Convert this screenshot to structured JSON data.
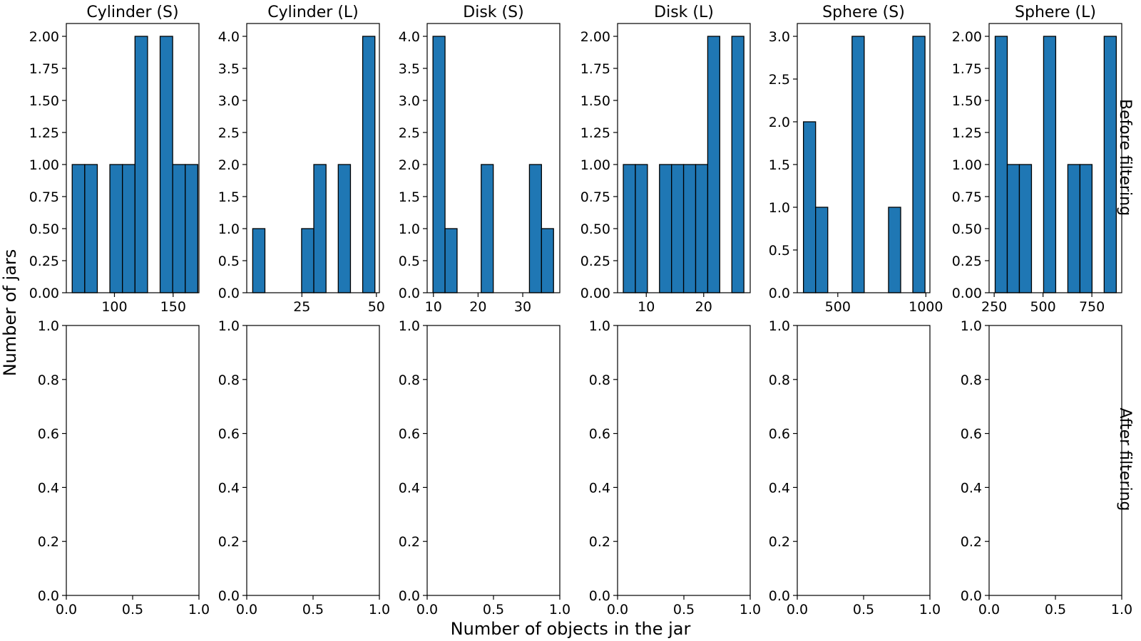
{
  "figure": {
    "xlabel": "Number of objects in the jar",
    "ylabel": "Number of jars",
    "row_labels": [
      "Before filtering",
      "After filtering"
    ],
    "bar_color": "#1f77b4",
    "bar_edge_color": "#000000"
  },
  "chart_data": [
    {
      "type": "bar",
      "title": "Cylinder (S)",
      "row": "Before filtering",
      "xlim": [
        59,
        172
      ],
      "ylim": [
        0,
        2.1
      ],
      "xticks": [
        100,
        150
      ],
      "xtick_labels": [
        "100",
        "150"
      ],
      "yticks": [
        0,
        0.25,
        0.5,
        0.75,
        1.0,
        1.25,
        1.5,
        1.75,
        2.0
      ],
      "ytick_labels": [
        "0.00",
        "0.25",
        "0.50",
        "0.75",
        "1.00",
        "1.25",
        "1.50",
        "1.75",
        "2.00"
      ],
      "bins": [
        [
          64.0,
          74.7,
          1
        ],
        [
          74.7,
          85.4,
          1
        ],
        [
          85.4,
          96.1,
          0
        ],
        [
          96.1,
          106.8,
          1
        ],
        [
          106.8,
          117.5,
          1
        ],
        [
          117.5,
          128.2,
          2
        ],
        [
          128.2,
          138.9,
          0
        ],
        [
          138.9,
          149.6,
          2
        ],
        [
          149.6,
          160.3,
          1
        ],
        [
          160.3,
          171.0,
          1
        ]
      ]
    },
    {
      "type": "bar",
      "title": "Cylinder (L)",
      "row": "Before filtering",
      "xlim": [
        6.5,
        51
      ],
      "ylim": [
        0,
        4.2
      ],
      "xticks": [
        25,
        50
      ],
      "xtick_labels": [
        "25",
        "50"
      ],
      "yticks": [
        0,
        0.5,
        1.0,
        1.5,
        2.0,
        2.5,
        3.0,
        3.5,
        4.0
      ],
      "ytick_labels": [
        "0.0",
        "0.5",
        "1.0",
        "1.5",
        "2.0",
        "2.5",
        "3.0",
        "3.5",
        "4.0"
      ],
      "bins": [
        [
          8.5,
          12.6,
          1
        ],
        [
          12.6,
          16.7,
          0
        ],
        [
          16.7,
          20.8,
          0
        ],
        [
          20.8,
          24.9,
          0
        ],
        [
          24.9,
          29.0,
          1
        ],
        [
          29.0,
          33.1,
          2
        ],
        [
          33.1,
          37.2,
          0
        ],
        [
          37.2,
          41.3,
          2
        ],
        [
          41.3,
          45.4,
          0
        ],
        [
          45.4,
          49.5,
          4
        ]
      ]
    },
    {
      "type": "bar",
      "title": "Disk (S)",
      "row": "Before filtering",
      "xlim": [
        8.6,
        38.3
      ],
      "ylim": [
        0,
        4.2
      ],
      "xticks": [
        10,
        20,
        30
      ],
      "xtick_labels": [
        "10",
        "20",
        "30"
      ],
      "yticks": [
        0,
        0.5,
        1.0,
        1.5,
        2.0,
        2.5,
        3.0,
        3.5,
        4.0
      ],
      "ytick_labels": [
        "0.0",
        "0.5",
        "1.0",
        "1.5",
        "2.0",
        "2.5",
        "3.0",
        "3.5",
        "4.0"
      ],
      "bins": [
        [
          9.9,
          12.6,
          4
        ],
        [
          12.6,
          15.3,
          1
        ],
        [
          15.3,
          18.0,
          0
        ],
        [
          18.0,
          20.7,
          0
        ],
        [
          20.7,
          23.4,
          2
        ],
        [
          23.4,
          26.1,
          0
        ],
        [
          26.1,
          28.8,
          0
        ],
        [
          28.8,
          31.5,
          0
        ],
        [
          31.5,
          34.2,
          2
        ],
        [
          34.2,
          36.9,
          1
        ]
      ]
    },
    {
      "type": "bar",
      "title": "Disk (L)",
      "row": "Before filtering",
      "xlim": [
        5,
        28.1
      ],
      "ylim": [
        0,
        2.1
      ],
      "xticks": [
        10,
        20
      ],
      "xtick_labels": [
        "10",
        "20"
      ],
      "yticks": [
        0,
        0.25,
        0.5,
        0.75,
        1.0,
        1.25,
        1.5,
        1.75,
        2.0
      ],
      "ytick_labels": [
        "0.00",
        "0.25",
        "0.50",
        "0.75",
        "1.00",
        "1.25",
        "1.50",
        "1.75",
        "2.00"
      ],
      "bins": [
        [
          6.0,
          8.1,
          1
        ],
        [
          8.1,
          10.2,
          1
        ],
        [
          10.2,
          12.3,
          0
        ],
        [
          12.3,
          14.4,
          1
        ],
        [
          14.4,
          16.5,
          1
        ],
        [
          16.5,
          18.6,
          1
        ],
        [
          18.6,
          20.7,
          1
        ],
        [
          20.7,
          22.8,
          2
        ],
        [
          22.8,
          24.9,
          0
        ],
        [
          24.9,
          27.0,
          2
        ]
      ]
    },
    {
      "type": "bar",
      "title": "Sphere (S)",
      "row": "Before filtering",
      "xlim": [
        270,
        1023
      ],
      "ylim": [
        0,
        3.15
      ],
      "xticks": [
        500,
        1000
      ],
      "xtick_labels": [
        "500",
        "1000"
      ],
      "yticks": [
        0,
        0.5,
        1.0,
        1.5,
        2.0,
        2.5,
        3.0
      ],
      "ytick_labels": [
        "0.0",
        "0.5",
        "1.0",
        "1.5",
        "2.0",
        "2.5",
        "3.0"
      ],
      "bins": [
        [
          305,
          374,
          2
        ],
        [
          374,
          443,
          1
        ],
        [
          443,
          512,
          0
        ],
        [
          512,
          581,
          0
        ],
        [
          581,
          650,
          3
        ],
        [
          650,
          719,
          0
        ],
        [
          719,
          788,
          0
        ],
        [
          788,
          857,
          1
        ],
        [
          857,
          926,
          0
        ],
        [
          926,
          995,
          3
        ]
      ]
    },
    {
      "type": "bar",
      "title": "Sphere (L)",
      "row": "Before filtering",
      "xlim": [
        224,
        903
      ],
      "ylim": [
        0,
        2.1
      ],
      "xticks": [
        250,
        500,
        750
      ],
      "xtick_labels": [
        "250",
        "500",
        "750"
      ],
      "yticks": [
        0,
        0.25,
        0.5,
        0.75,
        1.0,
        1.25,
        1.5,
        1.75,
        2.0
      ],
      "ytick_labels": [
        "0.00",
        "0.25",
        "0.50",
        "0.75",
        "1.00",
        "1.25",
        "1.50",
        "1.75",
        "2.00"
      ],
      "bins": [
        [
          255,
          317,
          2
        ],
        [
          317,
          379,
          1
        ],
        [
          379,
          441,
          1
        ],
        [
          441,
          503,
          0
        ],
        [
          503,
          565,
          2
        ],
        [
          565,
          627,
          0
        ],
        [
          627,
          689,
          1
        ],
        [
          689,
          751,
          1
        ],
        [
          751,
          813,
          0
        ],
        [
          813,
          875,
          2
        ]
      ]
    },
    {
      "type": "bar",
      "row": "After filtering",
      "xlim": [
        0,
        1
      ],
      "ylim": [
        0,
        1
      ],
      "xticks": [
        0,
        0.5,
        1.0
      ],
      "xtick_labels": [
        "0.0",
        "0.5",
        "1.0"
      ],
      "yticks": [
        0,
        0.2,
        0.4,
        0.6,
        0.8,
        1.0
      ],
      "ytick_labels": [
        "0.0",
        "0.2",
        "0.4",
        "0.6",
        "0.8",
        "1.0"
      ],
      "bins": []
    },
    {
      "type": "bar",
      "row": "After filtering",
      "xlim": [
        0,
        1
      ],
      "ylim": [
        0,
        1
      ],
      "xticks": [
        0,
        0.5,
        1.0
      ],
      "xtick_labels": [
        "0.0",
        "0.5",
        "1.0"
      ],
      "yticks": [
        0,
        0.2,
        0.4,
        0.6,
        0.8,
        1.0
      ],
      "ytick_labels": [
        "0.0",
        "0.2",
        "0.4",
        "0.6",
        "0.8",
        "1.0"
      ],
      "bins": []
    },
    {
      "type": "bar",
      "row": "After filtering",
      "xlim": [
        0,
        1
      ],
      "ylim": [
        0,
        1
      ],
      "xticks": [
        0,
        0.5,
        1.0
      ],
      "xtick_labels": [
        "0.0",
        "0.5",
        "1.0"
      ],
      "yticks": [
        0,
        0.2,
        0.4,
        0.6,
        0.8,
        1.0
      ],
      "ytick_labels": [
        "0.0",
        "0.2",
        "0.4",
        "0.6",
        "0.8",
        "1.0"
      ],
      "bins": []
    },
    {
      "type": "bar",
      "row": "After filtering",
      "xlim": [
        0,
        1
      ],
      "ylim": [
        0,
        1
      ],
      "xticks": [
        0,
        0.5,
        1.0
      ],
      "xtick_labels": [
        "0.0",
        "0.5",
        "1.0"
      ],
      "yticks": [
        0,
        0.2,
        0.4,
        0.6,
        0.8,
        1.0
      ],
      "ytick_labels": [
        "0.0",
        "0.2",
        "0.4",
        "0.6",
        "0.8",
        "1.0"
      ],
      "bins": []
    },
    {
      "type": "bar",
      "row": "After filtering",
      "xlim": [
        0,
        1
      ],
      "ylim": [
        0,
        1
      ],
      "xticks": [
        0,
        0.5,
        1.0
      ],
      "xtick_labels": [
        "0.0",
        "0.5",
        "1.0"
      ],
      "yticks": [
        0,
        0.2,
        0.4,
        0.6,
        0.8,
        1.0
      ],
      "ytick_labels": [
        "0.0",
        "0.2",
        "0.4",
        "0.6",
        "0.8",
        "1.0"
      ],
      "bins": []
    },
    {
      "type": "bar",
      "row": "After filtering",
      "xlim": [
        0,
        1
      ],
      "ylim": [
        0,
        1
      ],
      "xticks": [
        0,
        0.5,
        1.0
      ],
      "xtick_labels": [
        "0.0",
        "0.5",
        "1.0"
      ],
      "yticks": [
        0,
        0.2,
        0.4,
        0.6,
        0.8,
        1.0
      ],
      "ytick_labels": [
        "0.0",
        "0.2",
        "0.4",
        "0.6",
        "0.8",
        "1.0"
      ],
      "bins": []
    }
  ]
}
